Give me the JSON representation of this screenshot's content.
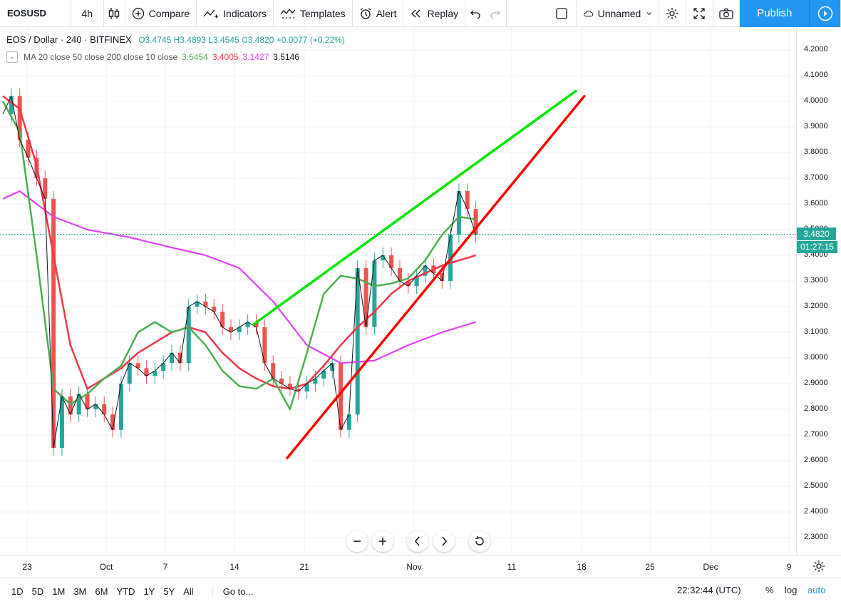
{
  "toolbar": {
    "symbol": "EOSUSD",
    "interval": "4h",
    "compare": "Compare",
    "indicators": "Indicators",
    "templates": "Templates",
    "alert": "Alert",
    "replay": "Replay",
    "layout_name": "Unnamed",
    "publish": "Publish"
  },
  "legend": {
    "title": "EOS / Dollar",
    "interval": "240",
    "exchange": "BITFINEX",
    "ohlc": "O3.4745 H3.4893 L3.4545 C3.4820 +0.0077 (+0.22%)",
    "ma_label": "MA 20 close 50 close 200 close 10 close",
    "ma_values": [
      "3.5454",
      "3.4005",
      "3.1427",
      "3.5146"
    ],
    "ma_colors": [
      "#4caf50",
      "#f23645",
      "#e040fb",
      "#131722"
    ]
  },
  "price_axis": {
    "ticks": [
      "4.2000",
      "4.1000",
      "4.0000",
      "3.9000",
      "3.8000",
      "3.7000",
      "3.6000",
      "3.5000",
      "3.4000",
      "3.3000",
      "3.2000",
      "3.1000",
      "3.0000",
      "2.9000",
      "2.8000",
      "2.7000",
      "2.6000",
      "2.5000",
      "2.4000",
      "2.3000"
    ],
    "last_price": "3.4820",
    "countdown": "01:27:15"
  },
  "time_axis": {
    "ticks": [
      "23",
      "Oct",
      "7",
      "14",
      "21",
      "Nov",
      "11",
      "18",
      "25",
      "Dec",
      "9"
    ]
  },
  "bottom": {
    "ranges": [
      "1D",
      "5D",
      "1M",
      "3M",
      "6M",
      "YTD",
      "1Y",
      "5Y",
      "All"
    ],
    "goto": "Go to...",
    "clock": "22:32:44 (UTC)",
    "percent": "%",
    "log": "log",
    "auto": "auto"
  },
  "colors": {
    "up": "#26a69a",
    "down": "#ef5350",
    "ma20": "#4caf50",
    "ma50": "#f23645",
    "ma200": "#e040fb",
    "ma10": "#131722",
    "trend_upper": "#00e600",
    "trend_lower": "#ff0000",
    "accent": "#2196f3"
  },
  "chart_data": {
    "type": "candlestick",
    "symbol": "EOSUSD",
    "ylim": [
      2.25,
      4.25
    ],
    "x_labels": [
      "23",
      "Oct",
      "7",
      "14",
      "21",
      "Nov",
      "11",
      "18",
      "25",
      "Dec",
      "9"
    ],
    "close_path": [
      [
        0,
        3.95
      ],
      [
        1,
        4.02
      ],
      [
        2,
        3.85
      ],
      [
        3,
        3.78
      ],
      [
        4,
        3.7
      ],
      [
        5,
        3.62
      ],
      [
        6,
        2.65
      ],
      [
        7,
        2.85
      ],
      [
        8,
        2.78
      ],
      [
        9,
        2.86
      ],
      [
        10,
        2.8
      ],
      [
        11,
        2.82
      ],
      [
        12,
        2.78
      ],
      [
        13,
        2.72
      ],
      [
        14,
        2.9
      ],
      [
        15,
        2.98
      ],
      [
        16,
        2.96
      ],
      [
        17,
        2.93
      ],
      [
        18,
        2.95
      ],
      [
        19,
        2.98
      ],
      [
        20,
        3.02
      ],
      [
        21,
        2.98
      ],
      [
        22,
        3.2
      ],
      [
        23,
        3.22
      ],
      [
        24,
        3.2
      ],
      [
        25,
        3.18
      ],
      [
        26,
        3.12
      ],
      [
        27,
        3.1
      ],
      [
        28,
        3.12
      ],
      [
        29,
        3.14
      ],
      [
        30,
        3.12
      ],
      [
        31,
        2.98
      ],
      [
        32,
        2.92
      ],
      [
        33,
        2.9
      ],
      [
        34,
        2.88
      ],
      [
        35,
        2.87
      ],
      [
        36,
        2.9
      ],
      [
        37,
        2.92
      ],
      [
        38,
        2.95
      ],
      [
        39,
        2.98
      ],
      [
        40,
        2.72
      ],
      [
        41,
        2.78
      ],
      [
        42,
        3.35
      ],
      [
        43,
        3.12
      ],
      [
        44,
        3.38
      ],
      [
        45,
        3.4
      ],
      [
        46,
        3.35
      ],
      [
        47,
        3.3
      ],
      [
        48,
        3.28
      ],
      [
        49,
        3.32
      ],
      [
        50,
        3.36
      ],
      [
        51,
        3.33
      ],
      [
        52,
        3.3
      ],
      [
        53,
        3.48
      ],
      [
        54,
        3.65
      ],
      [
        55,
        3.58
      ],
      [
        56,
        3.48
      ]
    ],
    "moving_averages": {
      "ma200": [
        [
          0,
          3.62
        ],
        [
          2,
          3.65
        ],
        [
          6,
          3.55
        ],
        [
          10,
          3.5
        ],
        [
          15,
          3.47
        ],
        [
          20,
          3.43
        ],
        [
          24,
          3.4
        ],
        [
          28,
          3.35
        ],
        [
          32,
          3.22
        ],
        [
          36,
          3.05
        ],
        [
          40,
          2.98
        ],
        [
          44,
          2.99
        ],
        [
          48,
          3.05
        ],
        [
          52,
          3.1
        ],
        [
          56,
          3.14
        ]
      ],
      "ma50": [
        [
          0,
          4.02
        ],
        [
          2,
          3.97
        ],
        [
          4,
          3.75
        ],
        [
          6,
          3.4
        ],
        [
          8,
          3.05
        ],
        [
          10,
          2.88
        ],
        [
          12,
          2.92
        ],
        [
          14,
          2.96
        ],
        [
          16,
          3.02
        ],
        [
          18,
          3.06
        ],
        [
          20,
          3.1
        ],
        [
          22,
          3.12
        ],
        [
          24,
          3.1
        ],
        [
          26,
          3.02
        ],
        [
          28,
          2.96
        ],
        [
          30,
          2.92
        ],
        [
          32,
          2.89
        ],
        [
          34,
          2.88
        ],
        [
          36,
          2.9
        ],
        [
          38,
          2.97
        ],
        [
          40,
          3.05
        ],
        [
          42,
          3.12
        ],
        [
          44,
          3.18
        ],
        [
          46,
          3.25
        ],
        [
          48,
          3.3
        ],
        [
          50,
          3.33
        ],
        [
          52,
          3.36
        ],
        [
          54,
          3.38
        ],
        [
          56,
          3.4
        ]
      ],
      "ma20": [
        [
          0,
          4.0
        ],
        [
          2,
          3.88
        ],
        [
          4,
          3.4
        ],
        [
          6,
          2.88
        ],
        [
          8,
          2.82
        ],
        [
          10,
          2.86
        ],
        [
          12,
          2.92
        ],
        [
          14,
          2.97
        ],
        [
          16,
          3.1
        ],
        [
          18,
          3.14
        ],
        [
          20,
          3.1
        ],
        [
          22,
          3.12
        ],
        [
          24,
          3.05
        ],
        [
          26,
          2.95
        ],
        [
          28,
          2.89
        ],
        [
          30,
          2.88
        ],
        [
          32,
          2.92
        ],
        [
          34,
          2.8
        ],
        [
          36,
          3.02
        ],
        [
          38,
          3.25
        ],
        [
          40,
          3.32
        ],
        [
          42,
          3.31
        ],
        [
          44,
          3.28
        ],
        [
          46,
          3.29
        ],
        [
          48,
          3.31
        ],
        [
          50,
          3.38
        ],
        [
          52,
          3.48
        ],
        [
          54,
          3.55
        ],
        [
          56,
          3.54
        ]
      ]
    },
    "trendlines": [
      {
        "name": "upper",
        "color": "#00e600",
        "from": [
          17,
          3.13
        ],
        "to": [
          40,
          4.04
        ]
      },
      {
        "name": "lower",
        "color": "#ff0000",
        "from": [
          21,
          2.61
        ],
        "to": [
          41,
          4.02
        ]
      }
    ],
    "last_price": 3.482
  }
}
